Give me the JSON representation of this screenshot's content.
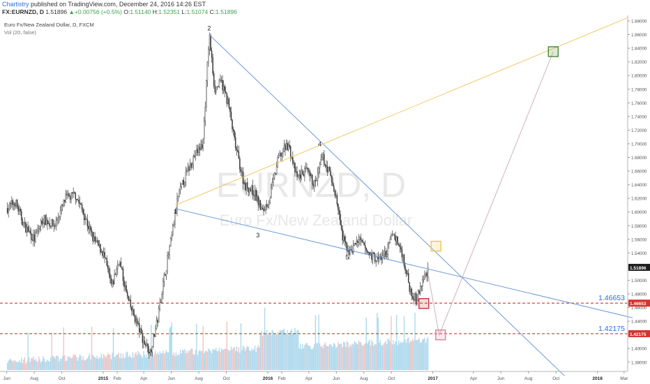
{
  "header": {
    "publisher": "Chartistry",
    "published_text": " published on TradingView.com, December 24, 2016 14:26 EST",
    "symbol": "FX:EURNZD, D",
    "price": "1.51896",
    "change": "+0.00756 (+0.5%)",
    "o_label": "O:",
    "o": "1.51140",
    "h_label": "H:",
    "h": "1.52351",
    "l_label": "L:",
    "l": "1.51074",
    "c_label": "C:",
    "c": "1.51896"
  },
  "legend": {
    "instrument": "Euro Fx/New Zealand Dollar, D, FXCM",
    "volume": "Vol (20, false)"
  },
  "watermark": {
    "symbol": "EURNZD, D",
    "name": "Euro Fx/New Zealand Dollar"
  },
  "colors": {
    "candle": "#3a3a3a",
    "trend_blue": "#5b8fd6",
    "trend_orange": "#f0c454",
    "projection": "#c8a8bc",
    "support_red": "#d6322f",
    "volume_blue": "#9fd2ea",
    "volume_red": "#f0b8b8",
    "box_green": "#4a8a32",
    "box_yellow": "#f0c454",
    "box_red": "#c0353a",
    "box_pink": "#d9869a",
    "price_tag": "#1e1e1e"
  },
  "chart_data": {
    "type": "candlestick",
    "symbol": "EURNZD",
    "timeframe": "D",
    "x_ticks": [
      "Jun",
      "Aug",
      "Oct",
      "2015",
      "Feb",
      "Apr",
      "Jun",
      "Aug",
      "Oct",
      "2016",
      "Feb",
      "Apr",
      "Jun",
      "Aug",
      "Oct",
      "2017",
      "Apr",
      "Jun",
      "Aug",
      "Oct",
      "2018",
      "Mar"
    ],
    "y_ticks": [
      "1.88000",
      "1.86000",
      "1.84000",
      "1.82000",
      "1.80000",
      "1.78000",
      "1.76000",
      "1.74000",
      "1.72000",
      "1.70000",
      "1.68000",
      "1.66000",
      "1.64000",
      "1.62000",
      "1.60000",
      "1.58000",
      "1.56000",
      "1.54000",
      "1.52000",
      "1.50000",
      "1.48000",
      "1.46000",
      "1.44000",
      "1.42000",
      "1.40000",
      "1.38000"
    ],
    "ylim": [
      1.365,
      1.885
    ],
    "last_price": "1.51896",
    "price_path": [
      [
        "2014-06-01",
        1.605
      ],
      [
        "2014-06-20",
        1.615
      ],
      [
        "2014-07-10",
        1.58
      ],
      [
        "2014-08-01",
        1.56
      ],
      [
        "2014-08-20",
        1.59
      ],
      [
        "2014-09-15",
        1.58
      ],
      [
        "2014-10-10",
        1.62
      ],
      [
        "2014-11-01",
        1.625
      ],
      [
        "2014-11-20",
        1.595
      ],
      [
        "2014-12-10",
        1.56
      ],
      [
        "2015-01-01",
        1.54
      ],
      [
        "2015-01-20",
        1.49
      ],
      [
        "2015-02-05",
        1.53
      ],
      [
        "2015-02-25",
        1.47
      ],
      [
        "2015-03-15",
        1.44
      ],
      [
        "2015-04-01",
        1.41
      ],
      [
        "2015-04-15",
        1.395
      ],
      [
        "2015-05-01",
        1.44
      ],
      [
        "2015-05-15",
        1.5
      ],
      [
        "2015-06-01",
        1.56
      ],
      [
        "2015-06-15",
        1.62
      ],
      [
        "2015-07-01",
        1.65
      ],
      [
        "2015-07-20",
        1.68
      ],
      [
        "2015-08-10",
        1.7
      ],
      [
        "2015-08-24",
        1.86
      ],
      [
        "2015-09-05",
        1.78
      ],
      [
        "2015-09-20",
        1.79
      ],
      [
        "2015-10-05",
        1.76
      ],
      [
        "2015-10-20",
        1.7
      ],
      [
        "2015-11-10",
        1.64
      ],
      [
        "2015-12-01",
        1.63
      ],
      [
        "2015-12-20",
        1.6
      ],
      [
        "2016-01-05",
        1.62
      ],
      [
        "2016-01-25",
        1.68
      ],
      [
        "2016-02-15",
        1.7
      ],
      [
        "2016-03-05",
        1.65
      ],
      [
        "2016-03-25",
        1.66
      ],
      [
        "2016-04-15",
        1.64
      ],
      [
        "2016-05-01",
        1.68
      ],
      [
        "2016-05-15",
        1.66
      ],
      [
        "2016-06-01",
        1.62
      ],
      [
        "2016-06-15",
        1.56
      ],
      [
        "2016-07-01",
        1.54
      ],
      [
        "2016-07-20",
        1.56
      ],
      [
        "2016-08-10",
        1.54
      ],
      [
        "2016-09-01",
        1.53
      ],
      [
        "2016-09-20",
        1.54
      ],
      [
        "2016-10-05",
        1.57
      ],
      [
        "2016-10-25",
        1.54
      ],
      [
        "2016-11-10",
        1.49
      ],
      [
        "2016-11-25",
        1.47
      ],
      [
        "2016-12-10",
        1.5
      ],
      [
        "2016-12-23",
        1.519
      ]
    ],
    "levels": [
      {
        "name": "support-1",
        "value": 1.46653,
        "label": "1.46653"
      },
      {
        "name": "support-2",
        "value": 1.42175,
        "label": "1.42175"
      }
    ],
    "pivots": [
      {
        "label": "1",
        "date": "2015-06-10",
        "value": 1.61
      },
      {
        "label": "2",
        "date": "2015-08-24",
        "value": 1.86
      },
      {
        "label": "3",
        "date": "2015-12-10",
        "value": 1.575
      },
      {
        "label": "4",
        "date": "2016-04-25",
        "value": 1.69
      },
      {
        "label": "5",
        "date": "2016-06-25",
        "value": 1.543
      }
    ],
    "trendlines": [
      {
        "name": "upper-falling",
        "color": "#5b8fd6",
        "from": [
          "2015-08-24",
          1.86
        ],
        "to": [
          "2017-10-20",
          1.36
        ]
      },
      {
        "name": "lower-falling",
        "color": "#5b8fd6",
        "from": [
          "2015-06-10",
          1.605
        ],
        "to": [
          "2018-03-20",
          1.445
        ]
      },
      {
        "name": "rising-channel",
        "color": "#f0c454",
        "from": [
          "2015-06-10",
          1.61
        ],
        "to": [
          "2018-03-10",
          1.885
        ]
      }
    ],
    "projection_path": [
      [
        "2016-12-20",
        1.515
      ],
      [
        "2017-01-15",
        1.42
      ],
      [
        "2017-09-25",
        1.835
      ]
    ],
    "target_boxes": [
      {
        "name": "target-green",
        "date": "2017-09-25",
        "value": 1.835,
        "color": "#4a8a32"
      },
      {
        "name": "target-yellow",
        "date": "2017-01-08",
        "value": 1.55,
        "color": "#f0c454"
      },
      {
        "name": "target-red",
        "date": "2016-12-12",
        "value": 1.466,
        "color": "#c0353a"
      },
      {
        "name": "target-pink",
        "date": "2017-01-18",
        "value": 1.42,
        "color": "#d9869a"
      }
    ],
    "volume_note": "daily volume histogram (Vol 20) shown along bottom of price pane"
  }
}
